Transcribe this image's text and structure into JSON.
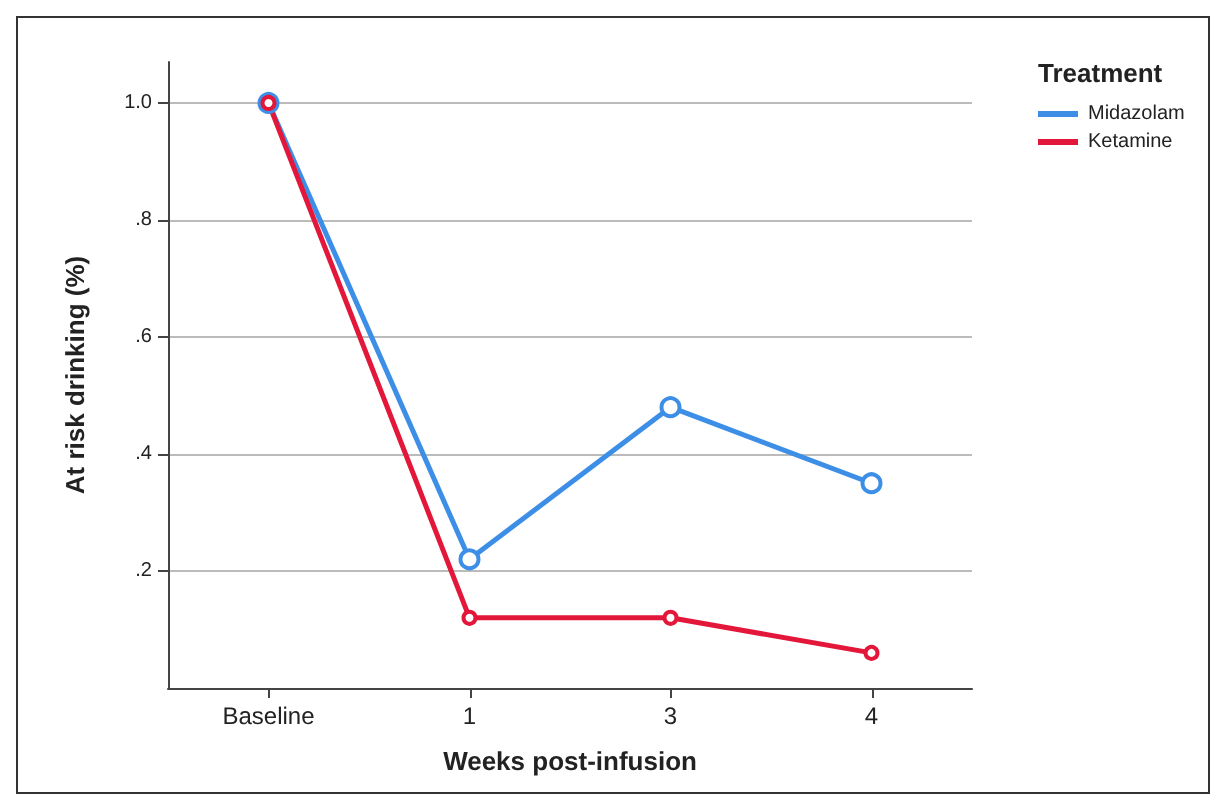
{
  "chart_data": {
    "type": "line",
    "xlabel": "Weeks post-infusion",
    "ylabel": "At risk drinking (%)",
    "legend_title": "Treatment",
    "categories": [
      "Baseline",
      "1",
      "3",
      "4"
    ],
    "series": [
      {
        "name": "Midazolam",
        "color": "#3d8ee6",
        "values": [
          1.0,
          0.22,
          0.48,
          0.35
        ]
      },
      {
        "name": "Ketamine",
        "color": "#e3173a",
        "values": [
          1.0,
          0.12,
          0.12,
          0.06
        ]
      }
    ],
    "ylim": [
      0,
      1.07
    ],
    "yticks": [
      {
        "value": 0.2,
        "label": ".2"
      },
      {
        "value": 0.4,
        "label": ".4"
      },
      {
        "value": 0.6,
        "label": ".6"
      },
      {
        "value": 0.8,
        "label": ".8"
      },
      {
        "value": 1,
        "label": "1.0"
      }
    ],
    "grid": "y",
    "legend": "top right",
    "marker": "circle",
    "line_style": "solid"
  }
}
